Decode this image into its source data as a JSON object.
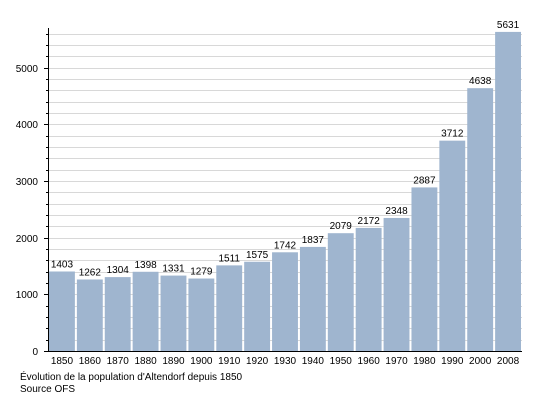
{
  "chart_data": {
    "type": "bar",
    "categories": [
      "1850",
      "1860",
      "1870",
      "1880",
      "1890",
      "1900",
      "1910",
      "1920",
      "1930",
      "1940",
      "1950",
      "1960",
      "1970",
      "1980",
      "1990",
      "2000",
      "2008"
    ],
    "values": [
      1403,
      1262,
      1304,
      1398,
      1331,
      1279,
      1511,
      1575,
      1742,
      1837,
      2079,
      2172,
      2348,
      2887,
      3712,
      4638,
      5631
    ],
    "ylim": [
      0,
      5700
    ],
    "yticks": [
      0,
      1000,
      2000,
      3000,
      4000,
      5000
    ],
    "yminor_step": 200,
    "grid": true,
    "bar_color": "#9fb5cf",
    "grid_color": "#d8d8d8",
    "title": "Évolution de la population d'Altendorf depuis 1850",
    "source": "Source OFS"
  }
}
